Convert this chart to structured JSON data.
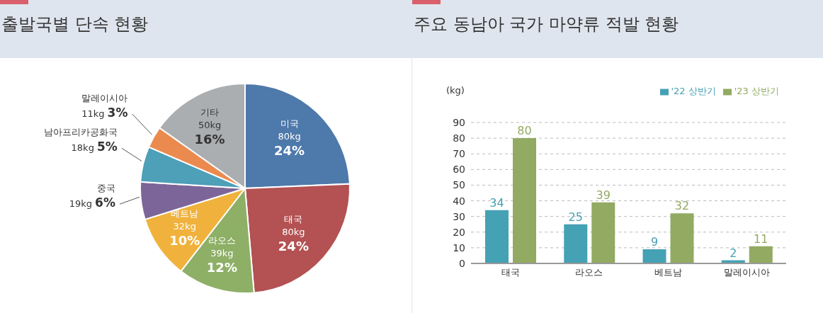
{
  "chart_data": [
    {
      "type": "pie",
      "title": "출발국별 단속 현황",
      "categories": [
        "미국",
        "태국",
        "라오스",
        "베트남",
        "중국",
        "남아프리카공화국",
        "말레이시아",
        "기타"
      ],
      "values": [
        80,
        80,
        39,
        32,
        19,
        18,
        11,
        50
      ],
      "colors": [
        "#4e79ab",
        "#b35153",
        "#8eaf66",
        "#f0b23c",
        "#7c6699",
        "#4e9fb8",
        "#eb8a4e",
        "#abaeb1"
      ],
      "value_labels": [
        "80kg 24%",
        "80kg 24%",
        "39kg 12%",
        "32kg 10%",
        "19kg 6%",
        "18kg 5%",
        "11kg 3%",
        "50kg 16%"
      ],
      "legend": false
    },
    {
      "type": "bar",
      "title": "주요 동남아 국가 마약류 적발 현황",
      "ylabel": "(kg)",
      "categories": [
        "태국",
        "라오스",
        "베트남",
        "말레이시아"
      ],
      "series": [
        {
          "name": "'22 상반기",
          "color": "#45a1b4",
          "values": [
            34,
            25,
            9,
            2
          ]
        },
        {
          "name": "'23 상반기",
          "color": "#92aa62",
          "values": [
            80,
            39,
            32,
            11
          ]
        }
      ],
      "ylim": [
        0,
        90
      ],
      "yticks": [
        0,
        10,
        20,
        30,
        40,
        50,
        60,
        70,
        80,
        90
      ],
      "grid": "y",
      "legend": "top right",
      "data_labels": true
    }
  ]
}
